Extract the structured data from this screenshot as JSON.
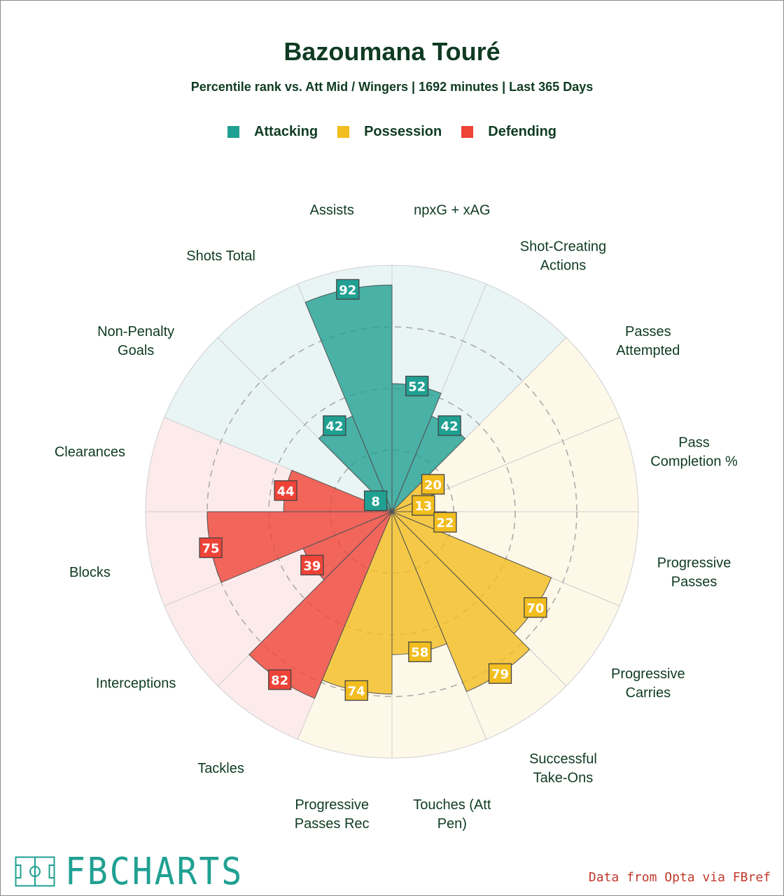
{
  "title": "Bazoumana Touré",
  "subtitle": "Percentile rank vs. Att Mid / Wingers | 1692 minutes | Last 365 Days",
  "legend": [
    {
      "label": "Attacking",
      "color": "#20a092"
    },
    {
      "label": "Possession",
      "color": "#f2bd1e"
    },
    {
      "label": "Defending",
      "color": "#ee4337"
    }
  ],
  "brand": "FBCHARTS",
  "credit": "Data from Opta via FBref",
  "colors": {
    "attacking": "#20a092",
    "possession": "#f2bd1e",
    "defending": "#ee4337",
    "bg_attacking": "#e8f5f4",
    "bg_possession": "#fdf8e8",
    "bg_defending": "#fdebec",
    "text": "#0f3b22",
    "brand": "#20a092",
    "credit": "#c0392b"
  },
  "chart_data": {
    "type": "polar-bar",
    "ylim": [
      0,
      100
    ],
    "rings": [
      25,
      50,
      75
    ],
    "categories": [
      {
        "label": [
          "npxG + xAG"
        ],
        "value": 52,
        "group": "attacking"
      },
      {
        "label": [
          "Shot-Creating",
          "Actions"
        ],
        "value": 42,
        "group": "attacking"
      },
      {
        "label": [
          "Passes",
          "Attempted"
        ],
        "value": 20,
        "group": "possession"
      },
      {
        "label": [
          "Pass",
          "Completion %"
        ],
        "value": 13,
        "group": "possession"
      },
      {
        "label": [
          "Progressive",
          "Passes"
        ],
        "value": 22,
        "group": "possession"
      },
      {
        "label": [
          "Progressive",
          "Carries"
        ],
        "value": 70,
        "group": "possession"
      },
      {
        "label": [
          "Successful",
          "Take-Ons"
        ],
        "value": 79,
        "group": "possession"
      },
      {
        "label": [
          "Touches (Att",
          "Pen)"
        ],
        "value": 58,
        "group": "possession"
      },
      {
        "label": [
          "Progressive",
          "Passes Rec"
        ],
        "value": 74,
        "group": "possession"
      },
      {
        "label": [
          "Tackles"
        ],
        "value": 82,
        "group": "defending"
      },
      {
        "label": [
          "Interceptions"
        ],
        "value": 39,
        "group": "defending"
      },
      {
        "label": [
          "Blocks"
        ],
        "value": 75,
        "group": "defending"
      },
      {
        "label": [
          "Clearances"
        ],
        "value": 44,
        "group": "defending"
      },
      {
        "label": [
          "Non-Penalty",
          "Goals"
        ],
        "value": 8,
        "group": "attacking"
      },
      {
        "label": [
          "Shots Total"
        ],
        "value": 42,
        "group": "attacking"
      },
      {
        "label": [
          "Assists"
        ],
        "value": 92,
        "group": "attacking"
      }
    ]
  }
}
